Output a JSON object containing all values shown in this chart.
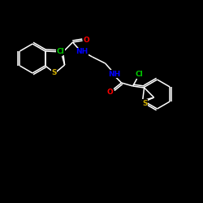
{
  "background_color": "#000000",
  "bond_color": "#ffffff",
  "atom_colors": {
    "Cl": "#00cc00",
    "O": "#ff0000",
    "N": "#0000ff",
    "S": "#ccaa00",
    "C": "#ffffff"
  },
  "lw": 1.1,
  "font_size": 6.5
}
